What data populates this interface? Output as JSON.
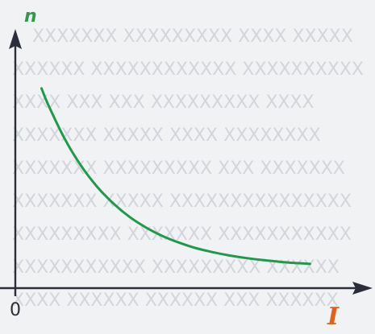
{
  "chart_data": {
    "type": "line",
    "title": "",
    "xlabel": "I",
    "ylabel": "n",
    "origin_label": "0",
    "xlim": [
      0,
      10
    ],
    "ylim": [
      0,
      10
    ],
    "grid": false,
    "series": [
      {
        "color": "#1f9a4a",
        "x": [
          0.8,
          1.0,
          1.5,
          2.0,
          2.5,
          3.0,
          3.5,
          4.0,
          4.5,
          5.0,
          5.5,
          6.0,
          6.5,
          7.0,
          7.5,
          8.0,
          8.5,
          9.0
        ],
        "y": [
          8.56,
          7.87,
          6.42,
          5.26,
          4.34,
          3.62,
          3.04,
          2.59,
          2.23,
          1.95,
          1.72,
          1.55,
          1.41,
          1.3,
          1.21,
          1.14,
          1.08,
          1.04
        ]
      }
    ]
  },
  "colors": {
    "axis": "#2b2e38",
    "curve": "#1f9a4a",
    "y_label": "#2f9a4a",
    "x_label": "#e0601d",
    "background": "#f1f2f4"
  }
}
